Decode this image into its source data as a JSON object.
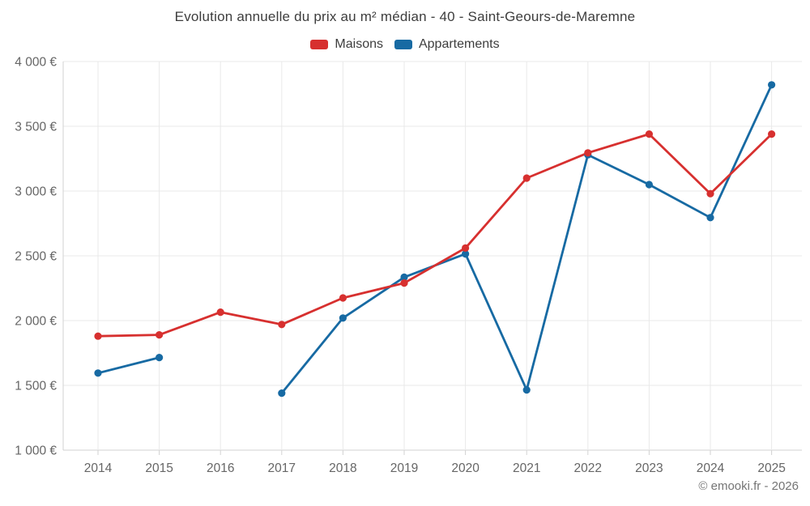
{
  "title": "Evolution annuelle du prix au m² médian - 40 - Saint-Geours-de-Maremne",
  "footer": "© emooki.fr - 2026",
  "colors": {
    "maisons": "#d7302f",
    "appartements": "#176aa3",
    "grid": "#e9e9e9",
    "axis": "#d2d2d2",
    "tick_text": "#666666",
    "title_text": "#3d3d3d",
    "footer_text": "#757575"
  },
  "chart_data": {
    "type": "line",
    "title": "Evolution annuelle du prix au m² médian - 40 - Saint-Geours-de-Maremne",
    "xlabel": "",
    "ylabel": "",
    "x": [
      2014,
      2015,
      2016,
      2017,
      2018,
      2019,
      2020,
      2021,
      2022,
      2023,
      2024,
      2025
    ],
    "series": [
      {
        "name": "Maisons",
        "color": "#d7302f",
        "values": [
          1880,
          1890,
          2065,
          1970,
          2175,
          2290,
          2560,
          3100,
          3295,
          3440,
          2980,
          3440
        ]
      },
      {
        "name": "Appartements",
        "color": "#176aa3",
        "values": [
          1595,
          1715,
          null,
          1440,
          2020,
          2335,
          2515,
          1465,
          3280,
          3050,
          2795,
          3820
        ]
      }
    ],
    "ylim": [
      1000,
      4000
    ],
    "y_ticks": [
      {
        "value": 1000,
        "label": "1 000 €"
      },
      {
        "value": 1500,
        "label": "1 500 €"
      },
      {
        "value": 2000,
        "label": "2 000 €"
      },
      {
        "value": 2500,
        "label": "2 500 €"
      },
      {
        "value": 3000,
        "label": "3 000 €"
      },
      {
        "value": 3500,
        "label": "3 500 €"
      },
      {
        "value": 4000,
        "label": "4 000 €"
      }
    ],
    "grid": true,
    "legend_position": "top",
    "marker": "circle"
  }
}
